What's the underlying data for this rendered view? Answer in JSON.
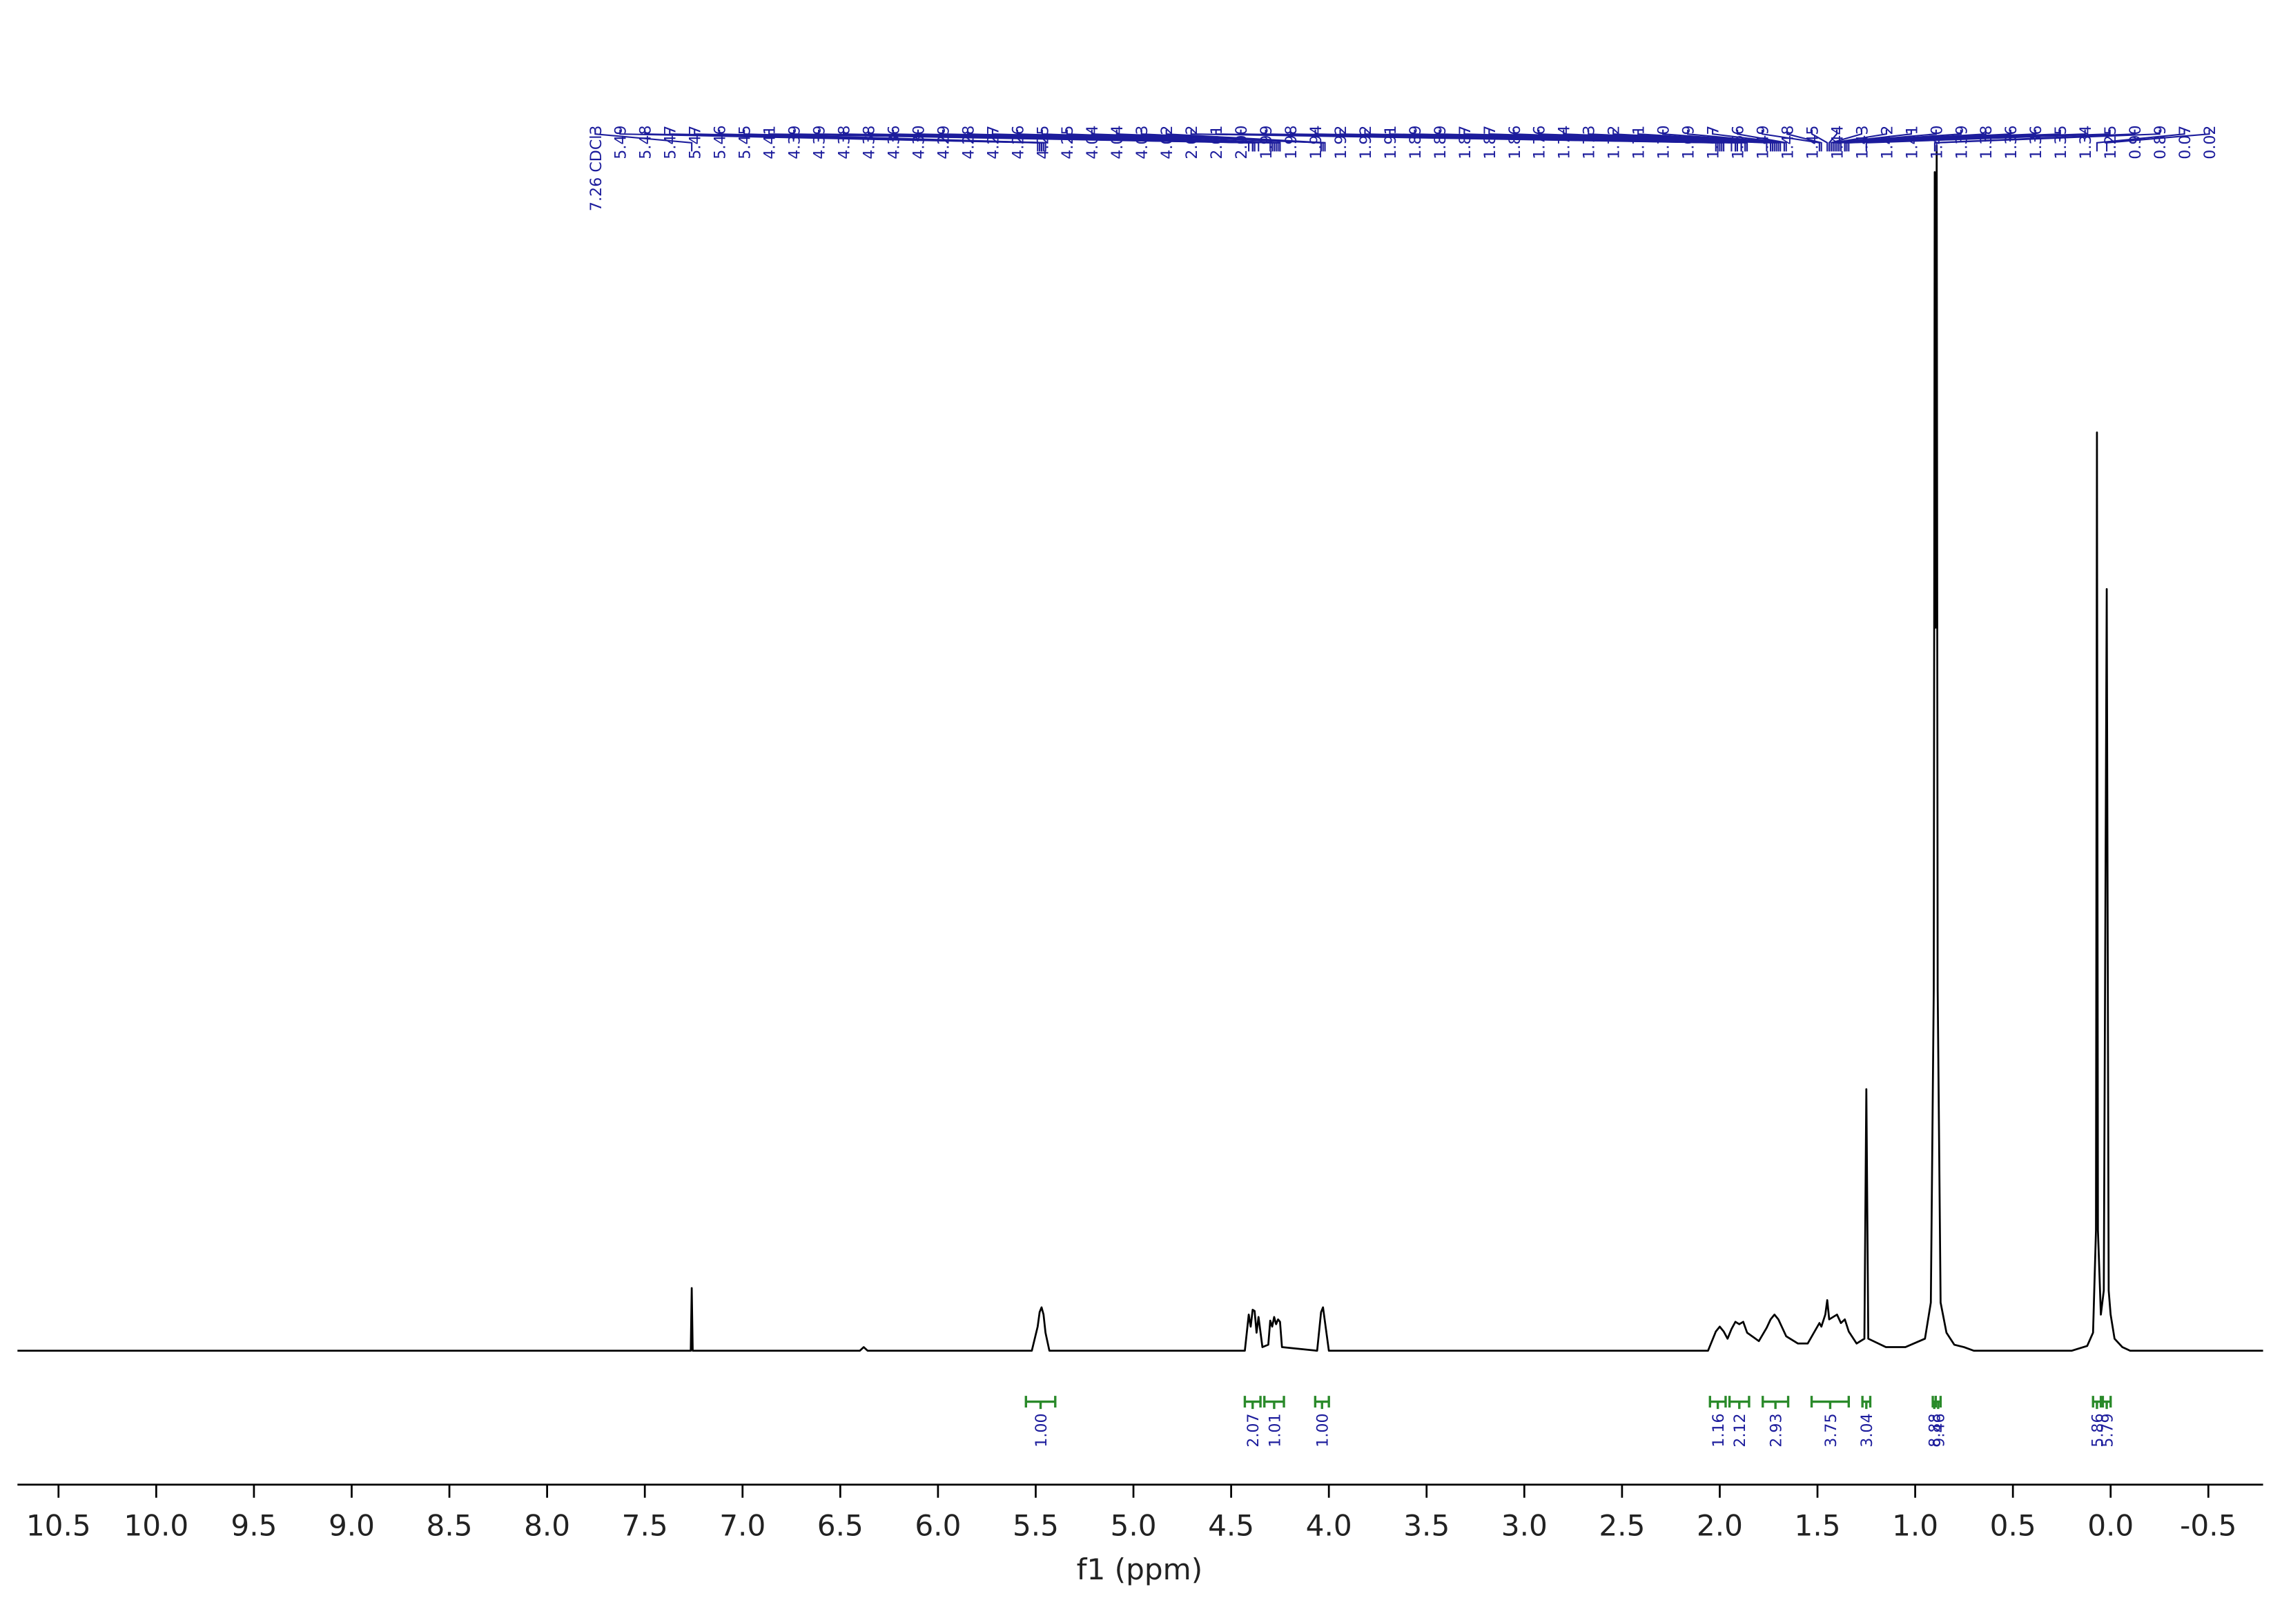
{
  "chart_data": {
    "type": "line",
    "x_label": "f1 (ppm)",
    "xlim": [
      10.71,
      -0.78
    ],
    "ylim": [
      0,
      100
    ],
    "xticks": [
      10.5,
      {
        "value": 10,
        "label": "10.0"
      },
      9.5,
      {
        "value": 9,
        "label": "9.0"
      },
      8.5,
      {
        "value": 8,
        "label": "8.0"
      },
      7.5,
      {
        "value": 7,
        "label": "7.0"
      },
      6.5,
      {
        "value": 6,
        "label": "6.0"
      },
      5.5,
      {
        "value": 5,
        "label": "5.0"
      },
      4.5,
      {
        "value": 4,
        "label": "4.0"
      },
      3.5,
      {
        "value": 3,
        "label": "3.0"
      },
      2.5,
      {
        "value": 2,
        "label": "2.0"
      },
      1.5,
      {
        "value": 1,
        "label": "1.0"
      },
      0.5,
      {
        "value": 0,
        "label": "0.0"
      },
      -0.5
    ],
    "series": [
      {
        "color": "#000000",
        "x": [
          10.71,
          7.3,
          7.265,
          7.26,
          7.255,
          6.4,
          6.38,
          6.36,
          5.52,
          5.49,
          5.48,
          5.47,
          5.46,
          5.45,
          5.43,
          4.43,
          4.41,
          4.4,
          4.39,
          4.38,
          4.37,
          4.36,
          4.34,
          4.31,
          4.3,
          4.29,
          4.28,
          4.27,
          4.26,
          4.25,
          4.24,
          4.06,
          4.04,
          4.03,
          4.02,
          4.0,
          2.06,
          2.02,
          2.0,
          1.98,
          1.96,
          1.94,
          1.92,
          1.9,
          1.88,
          1.86,
          1.8,
          1.76,
          1.74,
          1.72,
          1.7,
          1.68,
          1.66,
          1.6,
          1.55,
          1.49,
          1.48,
          1.46,
          1.45,
          1.44,
          1.42,
          1.4,
          1.38,
          1.36,
          1.34,
          1.3,
          1.26,
          1.25,
          1.24,
          1.15,
          1.05,
          0.95,
          0.92,
          0.905,
          0.9,
          0.895,
          0.89,
          0.885,
          0.87,
          0.84,
          0.8,
          0.75,
          0.7,
          0.2,
          0.12,
          0.09,
          0.075,
          0.07,
          0.065,
          0.05,
          0.035,
          0.02,
          0.01,
          0.0,
          -0.02,
          -0.06,
          -0.1,
          -0.78
        ],
        "values": [
          0,
          0,
          0,
          5.2,
          0,
          0,
          0.3,
          0,
          0,
          2.0,
          3.2,
          3.6,
          3.0,
          1.5,
          0,
          0,
          3.0,
          2.0,
          3.4,
          3.3,
          1.5,
          2.8,
          0.3,
          0.5,
          2.5,
          2.0,
          2.8,
          2.2,
          2.6,
          2.4,
          0.3,
          0,
          3.2,
          3.6,
          2.4,
          0,
          0,
          1.6,
          2.0,
          1.6,
          1.0,
          1.8,
          2.4,
          2.2,
          2.4,
          1.5,
          0.8,
          1.9,
          2.6,
          3.0,
          2.6,
          1.9,
          1.2,
          0.6,
          0.6,
          2.3,
          2.0,
          3.0,
          4.2,
          2.6,
          2.8,
          3.0,
          2.3,
          2.6,
          1.6,
          0.6,
          1.0,
          21.7,
          1.0,
          0.3,
          0.3,
          1.0,
          4.0,
          30,
          97.8,
          60,
          100,
          30,
          4.0,
          1.5,
          0.5,
          0.3,
          0,
          0,
          0.4,
          1.5,
          10,
          76.2,
          10,
          3.0,
          5,
          63.2,
          5,
          3.0,
          1.0,
          0.3,
          0,
          0
        ]
      }
    ],
    "peaks": [
      {
        "value": 7.26,
        "label": "7.26 CDCl3"
      },
      5.49,
      5.48,
      5.47,
      5.47,
      5.46,
      5.45,
      4.41,
      4.39,
      4.39,
      4.38,
      4.38,
      4.36,
      {
        "value": 4.3,
        "label": "4.30"
      },
      4.29,
      4.28,
      4.27,
      4.26,
      4.25,
      4.25,
      4.04,
      4.04,
      4.03,
      4.02,
      2.02,
      2.01,
      {
        "value": 2,
        "label": "2.00"
      },
      1.99,
      1.98,
      1.94,
      1.92,
      1.92,
      1.91,
      1.89,
      1.89,
      1.87,
      1.87,
      1.86,
      1.76,
      1.74,
      1.73,
      1.72,
      1.71,
      {
        "value": 1.7,
        "label": "1.70"
      },
      1.69,
      1.67,
      1.66,
      1.49,
      1.48,
      1.45,
      1.44,
      1.43,
      1.42,
      1.41,
      {
        "value": 1.4,
        "label": "1.40"
      },
      1.39,
      1.38,
      1.36,
      1.36,
      1.35,
      1.34,
      1.25,
      {
        "value": 0.9,
        "label": "0.90"
      },
      0.89,
      0.07,
      0.02
    ],
    "integrals": [
      {
        "from": 5.55,
        "to": 5.4,
        "value": {
          "value": 1,
          "label": "1.00"
        }
      },
      {
        "from": 4.43,
        "to": 4.35,
        "value": {
          "value": 2.07,
          "label": "2.07"
        }
      },
      {
        "from": 4.33,
        "to": 4.23,
        "value": {
          "value": 1.01,
          "label": "1.01"
        }
      },
      {
        "from": 4.07,
        "to": 4.0,
        "value": {
          "value": 1,
          "label": "1.00"
        }
      },
      {
        "from": 2.05,
        "to": 1.97,
        "value": {
          "value": 1.16,
          "label": "1.16"
        }
      },
      {
        "from": 1.95,
        "to": 1.85,
        "value": {
          "value": 2.12,
          "label": "2.12"
        }
      },
      {
        "from": 1.78,
        "to": 1.65,
        "value": {
          "value": 2.93,
          "label": "2.93"
        }
      },
      {
        "from": 1.53,
        "to": 1.34,
        "value": {
          "value": 3.75,
          "label": "3.75"
        }
      },
      {
        "from": 1.27,
        "to": 1.23,
        "value": {
          "value": 3.04,
          "label": "3.04"
        }
      },
      {
        "from": 0.91,
        "to": 0.895,
        "value": {
          "value": 8.88,
          "label": "8.88"
        }
      },
      {
        "from": 0.895,
        "to": 0.87,
        "value": {
          "value": 9.46,
          "label": "9.46"
        }
      },
      {
        "from": 0.09,
        "to": 0.05,
        "value": {
          "value": 5.86,
          "label": "5.86"
        }
      },
      {
        "from": 0.04,
        "to": 0.0,
        "value": {
          "value": 5.79,
          "label": "5.79"
        }
      }
    ]
  }
}
